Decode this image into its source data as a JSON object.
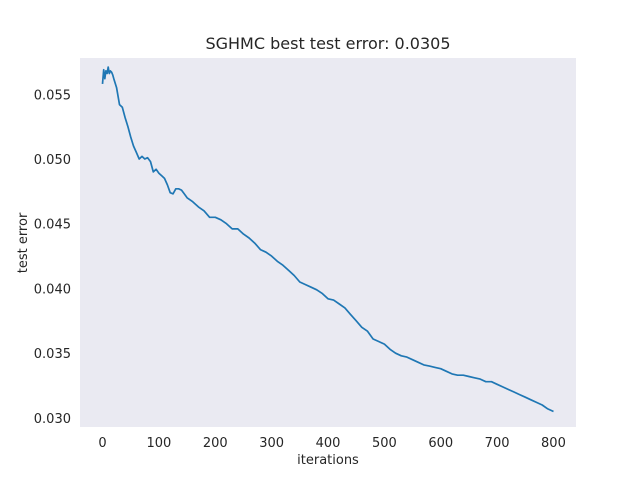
{
  "chart_data": {
    "type": "line",
    "title": "SGHMC best test error: 0.0305",
    "xlabel": "iterations",
    "ylabel": "test error",
    "xlim": [
      -40,
      840
    ],
    "ylim": [
      0.0293,
      0.0578
    ],
    "xticks": [
      0,
      100,
      200,
      300,
      400,
      500,
      600,
      700,
      800
    ],
    "xtick_labels": [
      "0",
      "100",
      "200",
      "300",
      "400",
      "500",
      "600",
      "700",
      "800"
    ],
    "yticks": [
      0.03,
      0.035,
      0.04,
      0.045,
      0.05,
      0.055
    ],
    "ytick_labels": [
      "0.030",
      "0.035",
      "0.040",
      "0.045",
      "0.050",
      "0.055"
    ],
    "grid": false,
    "background": "#eaeaf2",
    "series": [
      {
        "color": "#1f77b4",
        "x": [
          0,
          2,
          4,
          6,
          8,
          10,
          12,
          14,
          16,
          18,
          20,
          25,
          30,
          35,
          40,
          45,
          50,
          55,
          60,
          65,
          70,
          75,
          80,
          85,
          90,
          95,
          100,
          105,
          110,
          115,
          120,
          125,
          130,
          135,
          140,
          145,
          150,
          160,
          170,
          180,
          190,
          200,
          210,
          220,
          230,
          240,
          250,
          260,
          270,
          280,
          290,
          300,
          310,
          320,
          330,
          340,
          350,
          360,
          370,
          380,
          390,
          400,
          410,
          420,
          430,
          440,
          450,
          460,
          470,
          480,
          490,
          500,
          510,
          520,
          530,
          540,
          550,
          560,
          570,
          580,
          590,
          600,
          610,
          620,
          630,
          640,
          650,
          660,
          670,
          680,
          690,
          700,
          710,
          720,
          730,
          740,
          750,
          760,
          770,
          780,
          790,
          800
        ],
        "y": [
          0.0558,
          0.0569,
          0.0562,
          0.0568,
          0.0566,
          0.0571,
          0.0566,
          0.0568,
          0.0567,
          0.0565,
          0.0562,
          0.0555,
          0.0542,
          0.054,
          0.0532,
          0.0525,
          0.0517,
          0.051,
          0.0505,
          0.05,
          0.0502,
          0.05,
          0.0501,
          0.0498,
          0.049,
          0.0492,
          0.0489,
          0.0487,
          0.0485,
          0.048,
          0.0474,
          0.0473,
          0.0477,
          0.0477,
          0.0476,
          0.0473,
          0.047,
          0.0467,
          0.0463,
          0.046,
          0.0455,
          0.0455,
          0.0453,
          0.045,
          0.0446,
          0.0446,
          0.0442,
          0.0439,
          0.0435,
          0.043,
          0.0428,
          0.0425,
          0.0421,
          0.0418,
          0.0414,
          0.041,
          0.0405,
          0.0403,
          0.0401,
          0.0399,
          0.0396,
          0.0392,
          0.0391,
          0.0388,
          0.0385,
          0.038,
          0.0375,
          0.037,
          0.0367,
          0.0361,
          0.0359,
          0.0357,
          0.0353,
          0.035,
          0.0348,
          0.0347,
          0.0345,
          0.0343,
          0.0341,
          0.034,
          0.0339,
          0.0338,
          0.0336,
          0.0334,
          0.0333,
          0.0333,
          0.0332,
          0.0331,
          0.033,
          0.0328,
          0.0328,
          0.0326,
          0.0324,
          0.0322,
          0.032,
          0.0318,
          0.0316,
          0.0314,
          0.0312,
          0.031,
          0.0307,
          0.0305
        ]
      }
    ]
  }
}
